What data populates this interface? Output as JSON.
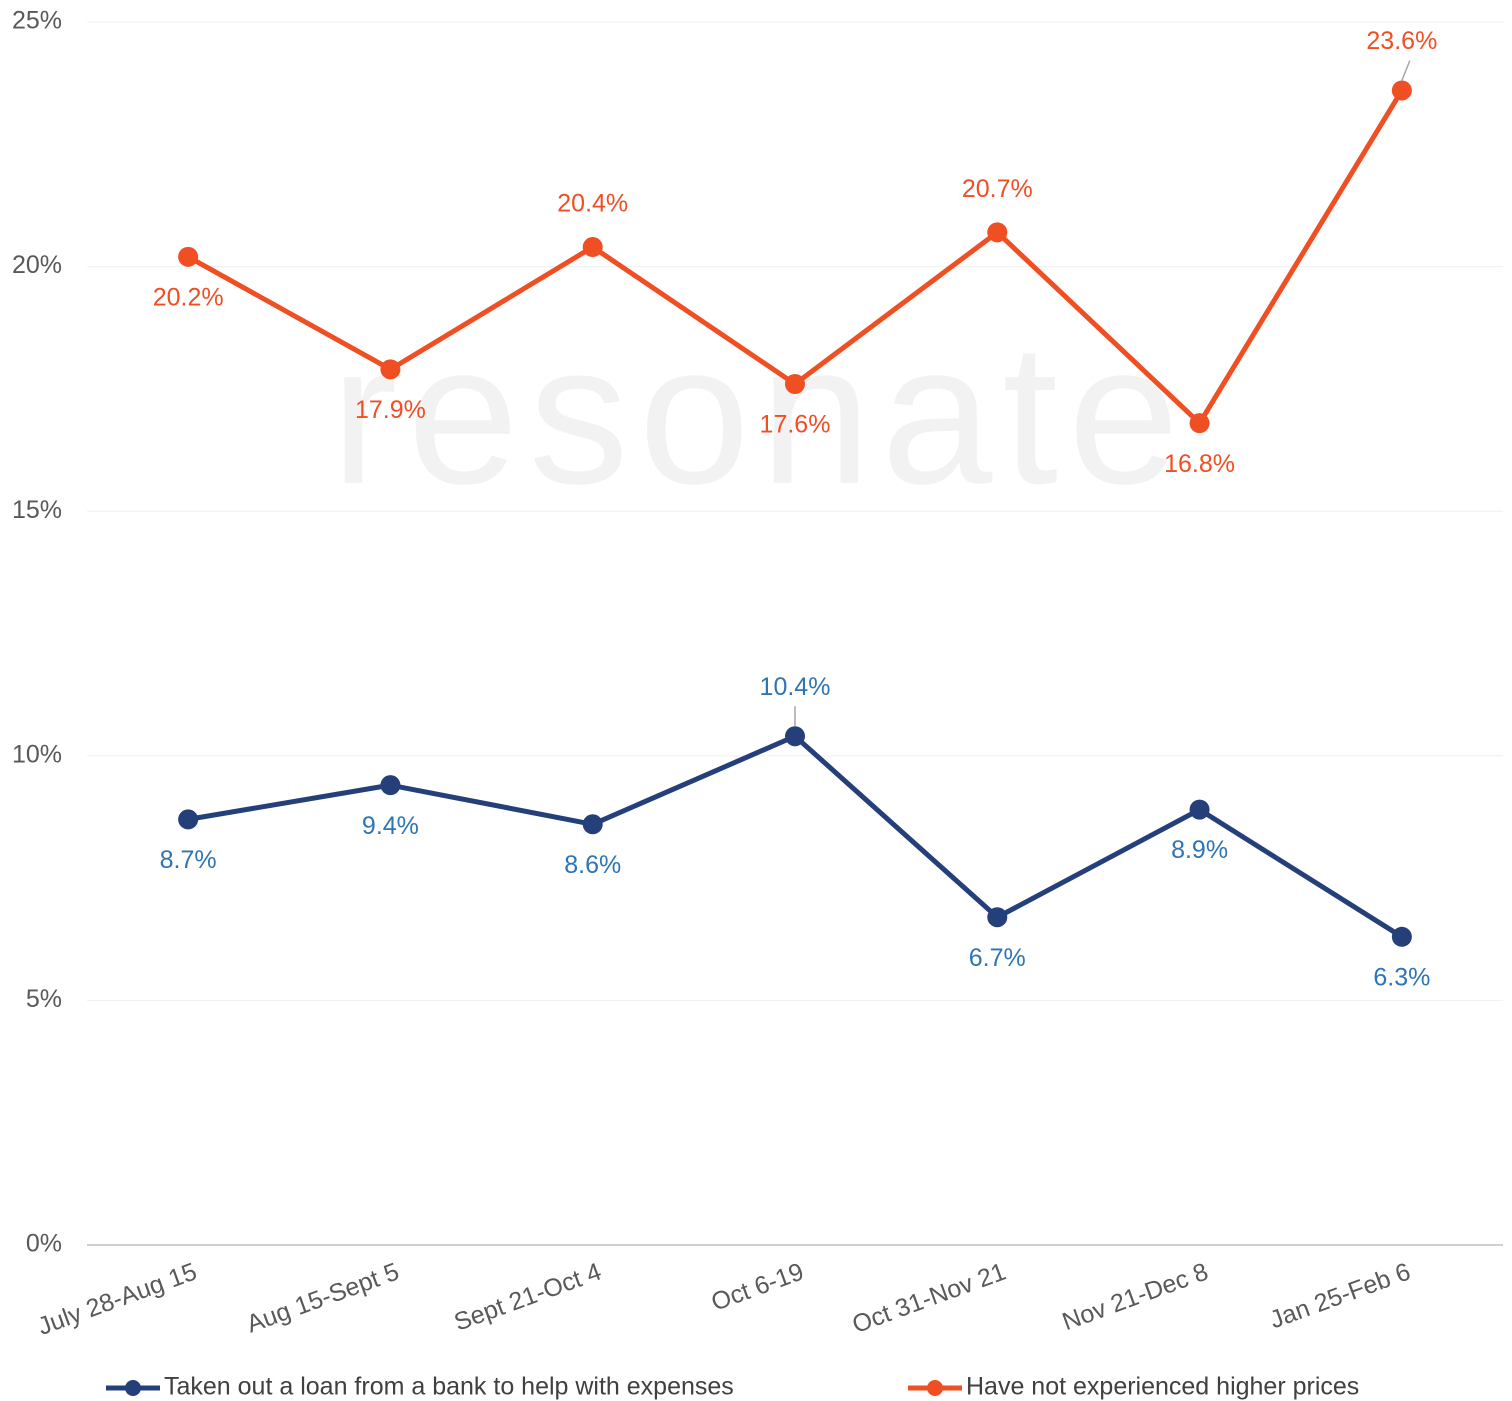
{
  "chart_data": {
    "type": "line",
    "watermark": "resonate",
    "categories": [
      "July 28-Aug 15",
      "Aug 15-Sept 5",
      "Sept 21-Oct 4",
      "Oct 6-19",
      "Oct 31-Nov 21",
      "Nov 21-Dec 8",
      "Jan 25-Feb 6"
    ],
    "series": [
      {
        "name": "Taken out a loan from a bank to help with expenses",
        "color": "#243f7a",
        "label_color": "#2e75b6",
        "values": [
          8.7,
          9.4,
          8.6,
          10.4,
          6.7,
          8.9,
          6.3
        ],
        "value_labels": [
          "8.7%",
          "9.4%",
          "8.6%",
          "10.4%",
          "6.7%",
          "8.9%",
          "6.3%"
        ]
      },
      {
        "name": "Have not experienced higher prices",
        "color": "#f04e23",
        "label_color": "#f04e23",
        "values": [
          20.2,
          17.9,
          20.4,
          17.6,
          20.7,
          16.8,
          23.6
        ],
        "value_labels": [
          "20.2%",
          "17.9%",
          "20.4%",
          "17.6%",
          "20.7%",
          "16.8%",
          "23.6%"
        ]
      }
    ],
    "ylim": [
      0,
      25
    ],
    "yticks": [
      {
        "value": 0,
        "label": "0%"
      },
      {
        "value": 5,
        "label": "5%"
      },
      {
        "value": 10,
        "label": "10%"
      },
      {
        "value": 15,
        "label": "15%"
      },
      {
        "value": 20,
        "label": "20%"
      },
      {
        "value": 25,
        "label": "25%"
      }
    ],
    "grid": true
  }
}
